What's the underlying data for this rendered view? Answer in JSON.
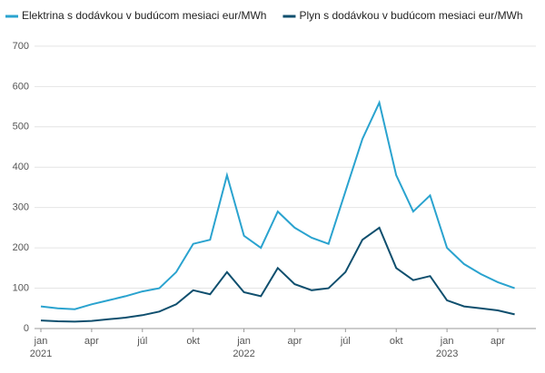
{
  "chart_data": {
    "type": "line",
    "x": [
      "2021-01",
      "2021-02",
      "2021-03",
      "2021-04",
      "2021-05",
      "2021-06",
      "2021-07",
      "2021-08",
      "2021-09",
      "2021-10",
      "2021-11",
      "2021-12",
      "2022-01",
      "2022-02",
      "2022-03",
      "2022-04",
      "2022-05",
      "2022-06",
      "2022-07",
      "2022-08",
      "2022-09",
      "2022-10",
      "2022-11",
      "2022-12",
      "2023-01",
      "2023-02",
      "2023-03",
      "2023-04",
      "2023-05"
    ],
    "series": [
      {
        "name": "Elektrina s dodávkou v budúcom mesiaci eur/MWh",
        "color": "#2aa3cf",
        "values": [
          55,
          50,
          48,
          60,
          70,
          80,
          92,
          100,
          140,
          210,
          220,
          380,
          230,
          200,
          290,
          250,
          225,
          210,
          340,
          470,
          560,
          380,
          290,
          330,
          200,
          160,
          135,
          115,
          100
        ]
      },
      {
        "name": "Plyn s dodávkou v budúcom mesiaci eur/MWh",
        "color": "#0f4f6e",
        "values": [
          20,
          18,
          17,
          19,
          23,
          27,
          33,
          42,
          60,
          95,
          85,
          140,
          90,
          80,
          150,
          110,
          95,
          100,
          140,
          220,
          250,
          150,
          120,
          130,
          70,
          55,
          50,
          45,
          35
        ]
      }
    ],
    "ylim": [
      0,
      750
    ],
    "yticks": [
      0,
      100,
      200,
      300,
      400,
      500,
      600,
      700
    ],
    "xticks": [
      {
        "value": "2021-01",
        "label": "jan"
      },
      {
        "value": "2021-04",
        "label": "apr"
      },
      {
        "value": "2021-07",
        "label": "júl"
      },
      {
        "value": "2021-10",
        "label": "okt"
      },
      {
        "value": "2022-01",
        "label": "jan"
      },
      {
        "value": "2022-04",
        "label": "apr"
      },
      {
        "value": "2022-07",
        "label": "júl"
      },
      {
        "value": "2022-10",
        "label": "okt"
      },
      {
        "value": "2023-01",
        "label": "jan"
      },
      {
        "value": "2023-04",
        "label": "apr"
      }
    ],
    "xtick_years": [
      {
        "value": "2021-01",
        "label": "2021"
      },
      {
        "value": "2022-01",
        "label": "2022"
      },
      {
        "value": "2023-01",
        "label": "2023"
      }
    ],
    "grid": true
  }
}
